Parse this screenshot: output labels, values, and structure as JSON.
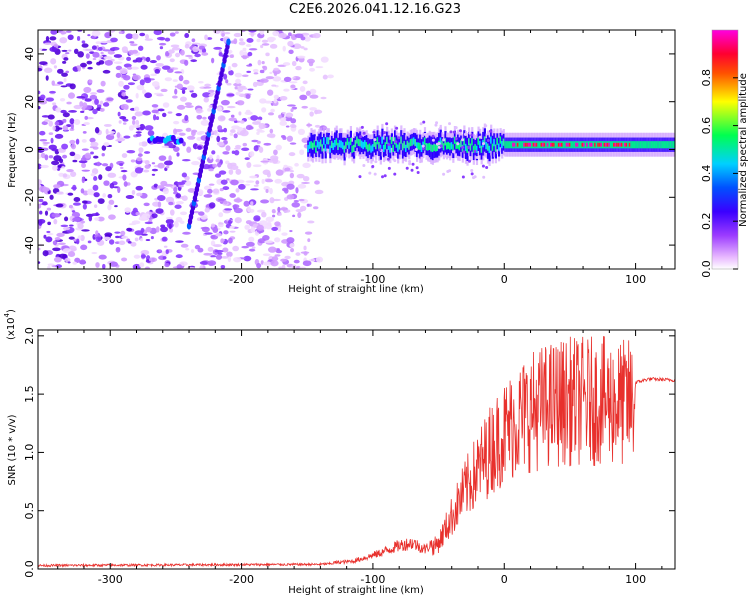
{
  "title": "C2E6.2026.041.12.16.G23",
  "chart_data": [
    {
      "type": "heatmap",
      "name": "spectrogram",
      "xlabel": "Height of straight line (km)",
      "ylabel": "Frequency (Hz)",
      "xlim": [
        -355,
        130
      ],
      "ylim": [
        -50,
        50
      ],
      "x_ticks": [
        -300,
        -200,
        -100,
        0,
        100
      ],
      "x_tick_labels": [
        "-300",
        "-200",
        "-100",
        "0",
        "100"
      ],
      "y_ticks": [
        -40,
        -20,
        0,
        20,
        40
      ],
      "y_tick_labels": [
        "-40",
        "-20",
        "0",
        "20",
        "40"
      ],
      "colorbar": {
        "label": "Normalized spectral amplitude",
        "range": [
          0,
          1
        ],
        "ticks": [
          0.0,
          0.2,
          0.4,
          0.6,
          0.8
        ],
        "tick_labels": [
          "0.0",
          "0.2",
          "0.4",
          "0.6",
          "0.8"
        ],
        "colors": [
          "#ffffff",
          "#5a00ff",
          "#0000ff",
          "#00c8ff",
          "#00ff66",
          "#ffff00",
          "#ff2200",
          "#ff00cc"
        ]
      },
      "noise_region_x": [
        -355,
        -130
      ],
      "signal_band": {
        "x_start": -150,
        "x_end": 130,
        "freq_center": 2,
        "freq_width": 6
      },
      "streak": {
        "x": [
          -240,
          -210
        ],
        "freq": [
          -32,
          45
        ]
      }
    },
    {
      "type": "line",
      "name": "snr",
      "xlabel": "Height of straight line (km)",
      "ylabel": "SNR (10 * v/v)",
      "scale_label": "(x10",
      "scale_exponent": "4",
      "scale_close": ")",
      "xlim": [
        -355,
        130
      ],
      "ylim": [
        0,
        2.05
      ],
      "x_ticks": [
        -300,
        -200,
        -100,
        0,
        100
      ],
      "x_tick_labels": [
        "-300",
        "-200",
        "-100",
        "0",
        "100"
      ],
      "y_ticks": [
        0.0,
        0.5,
        1.0,
        1.5,
        2.0
      ],
      "y_tick_labels": [
        "0.0",
        "0.5",
        "1.0",
        "1.5",
        "2.0"
      ],
      "line_color": "#e8302c",
      "profile_x": [
        -355,
        -140,
        -115,
        -95,
        -80,
        -70,
        -60,
        -50,
        -40,
        -30,
        -20,
        -10,
        0,
        10,
        20,
        30,
        40,
        50,
        60,
        70,
        80,
        90,
        100,
        110,
        130
      ],
      "profile_y": [
        0.03,
        0.04,
        0.06,
        0.12,
        0.18,
        0.2,
        0.15,
        0.25,
        0.5,
        0.75,
        0.95,
        1.15,
        1.3,
        1.42,
        1.5,
        1.55,
        1.58,
        1.6,
        1.6,
        1.6,
        1.6,
        1.58,
        1.6,
        1.63,
        1.62
      ]
    }
  ]
}
